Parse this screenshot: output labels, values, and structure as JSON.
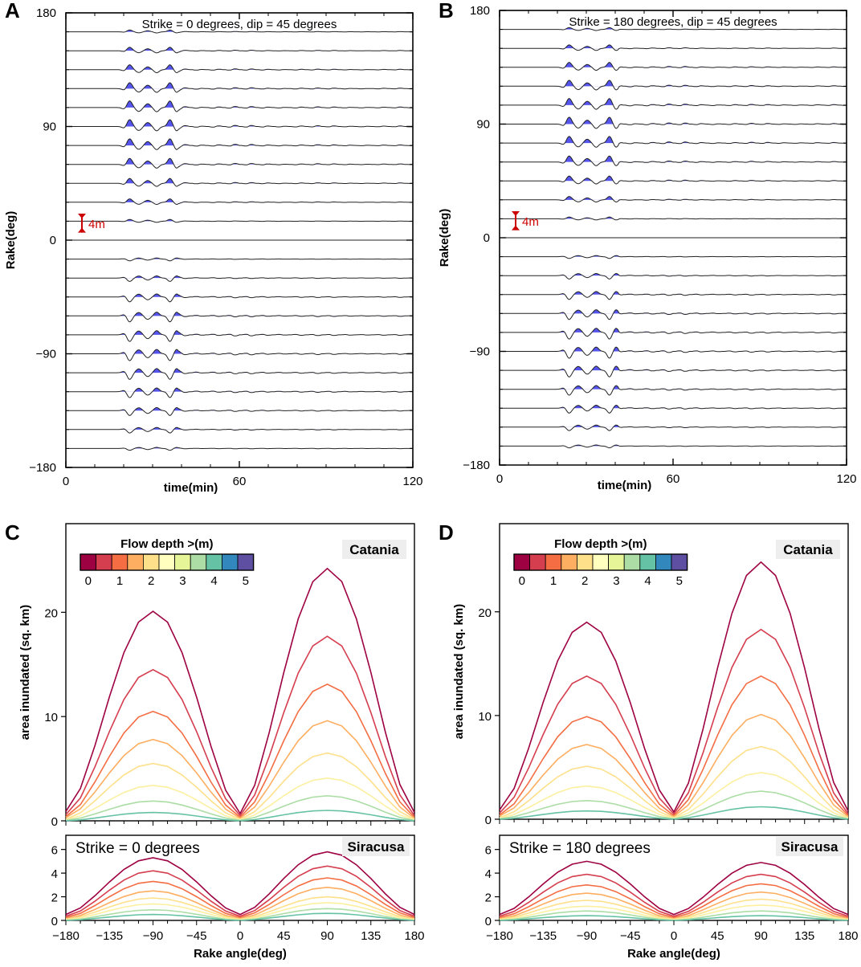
{
  "chart_data": [
    {
      "panel": "A",
      "type": "line",
      "subtype": "waveform-stack",
      "title": "Strike = 0 degrees, dip = 45 degrees",
      "xlabel": "time(min)",
      "ylabel": "Rake(deg)",
      "xlim": [
        0,
        120
      ],
      "ylim": [
        -180,
        180
      ],
      "xticks": [
        "0",
        "60",
        "120"
      ],
      "yticks": [
        "180",
        "90",
        "0",
        "−90",
        "−180"
      ],
      "scale_label": "4m",
      "trace_rakes": [
        165,
        150,
        135,
        120,
        105,
        90,
        75,
        60,
        45,
        30,
        15,
        0,
        -15,
        -30,
        -45,
        -60,
        -75,
        -90,
        -105,
        -120,
        -135,
        -150,
        -165,
        -180
      ],
      "first_arrival_min": 22,
      "second_arrival_min": 36
    },
    {
      "panel": "B",
      "type": "line",
      "subtype": "waveform-stack",
      "title": "Strike = 180 degrees, dip = 45 degrees",
      "xlabel": "time(min)",
      "ylabel": "Rake(deg)",
      "xlim": [
        0,
        120
      ],
      "ylim": [
        -180,
        180
      ],
      "xticks": [
        "0",
        "60",
        "120"
      ],
      "yticks": [
        "180",
        "90",
        "0",
        "−90",
        "−180"
      ],
      "scale_label": "4m",
      "trace_rakes": [
        165,
        150,
        135,
        120,
        105,
        90,
        75,
        60,
        45,
        30,
        15,
        0,
        -15,
        -30,
        -45,
        -60,
        -75,
        -90,
        -105,
        -120,
        -135,
        -150,
        -165,
        -180
      ],
      "first_arrival_min": 24,
      "second_arrival_min": 38
    },
    {
      "panel": "C",
      "type": "line",
      "legend_title": "Flow depth >(m)",
      "legend_ticks": [
        "0",
        "1",
        "2",
        "3",
        "4",
        "5"
      ],
      "legend_colors": [
        "#9e0142",
        "#d53e4f",
        "#f46d43",
        "#fdae61",
        "#fee08b",
        "#ffffbf",
        "#e6f598",
        "#abdda4",
        "#66c2a5",
        "#3288bd",
        "#5e4fa2"
      ],
      "line_colors": [
        "#9e0142",
        "#d53e4f",
        "#f46d43",
        "#fdae61",
        "#fee08b",
        "#fcf0a0",
        "#abdda4",
        "#66c2a5"
      ],
      "upper": {
        "label": "Catania",
        "ylabel": "area inundated (sq. km)",
        "ylim": [
          0,
          28.5
        ],
        "yticks": [
          0,
          10,
          20
        ],
        "x": [
          -180,
          -165,
          -150,
          -135,
          -120,
          -105,
          -90,
          -75,
          -60,
          -45,
          -30,
          -15,
          0,
          15,
          30,
          45,
          60,
          75,
          90,
          105,
          120,
          135,
          150,
          165,
          180
        ],
        "peaks_neg": [
          20.1,
          14.5,
          10.5,
          7.8,
          5.5,
          3.4,
          1.9,
          0.8
        ],
        "peaks_pos": [
          24.2,
          17.7,
          13.1,
          9.6,
          6.5,
          4.1,
          2.4,
          1.0
        ],
        "base_left": [
          0.9,
          0.6,
          0.4,
          0.3,
          0.15,
          0.1,
          0.05,
          0.0
        ],
        "base_mid": [
          0.7,
          0.5,
          0.35,
          0.25,
          0.15,
          0.1,
          0.05,
          0.0
        ],
        "base_right": [
          0.8,
          0.5,
          0.35,
          0.25,
          0.15,
          0.1,
          0.05,
          0.0
        ]
      },
      "lower": {
        "label": "Siracusa",
        "annotation": "Strike = 0 degrees",
        "xlabel": "Rake angle(deg)",
        "ylim": [
          0,
          7.2
        ],
        "yticks": [
          0,
          2,
          4,
          6
        ],
        "xticks": [
          "−180",
          "−135",
          "−90",
          "−45",
          "0",
          "45",
          "90",
          "135",
          "180"
        ],
        "peaks_neg": [
          5.3,
          4.2,
          3.3,
          2.5,
          1.9,
          1.4,
          0.9,
          0.5
        ],
        "peaks_pos": [
          5.8,
          4.6,
          3.6,
          2.8,
          2.0,
          1.5,
          1.0,
          0.6
        ],
        "base_left": [
          0.5,
          0.35,
          0.25,
          0.15,
          0.1,
          0.05,
          0.0,
          0.0
        ],
        "base_mid": [
          0.5,
          0.35,
          0.25,
          0.15,
          0.1,
          0.05,
          0.0,
          0.0
        ],
        "base_right": [
          0.5,
          0.35,
          0.25,
          0.15,
          0.1,
          0.05,
          0.0,
          0.0
        ]
      }
    },
    {
      "panel": "D",
      "type": "line",
      "legend_title": "Flow depth >(m)",
      "legend_ticks": [
        "0",
        "1",
        "2",
        "3",
        "4",
        "5"
      ],
      "legend_colors": [
        "#9e0142",
        "#d53e4f",
        "#f46d43",
        "#fdae61",
        "#fee08b",
        "#ffffbf",
        "#e6f598",
        "#abdda4",
        "#66c2a5",
        "#3288bd",
        "#5e4fa2"
      ],
      "line_colors": [
        "#9e0142",
        "#d53e4f",
        "#f46d43",
        "#fdae61",
        "#fee08b",
        "#fcf0a0",
        "#abdda4",
        "#66c2a5"
      ],
      "upper": {
        "label": "Catania",
        "ylabel": "area inundated (sq. km)",
        "ylim": [
          0,
          28.5
        ],
        "yticks": [
          0,
          10,
          20
        ],
        "x": [
          -180,
          -165,
          -150,
          -135,
          -120,
          -105,
          -90,
          -75,
          -60,
          -45,
          -30,
          -15,
          0,
          15,
          30,
          45,
          60,
          75,
          90,
          105,
          120,
          135,
          150,
          165,
          180
        ],
        "peaks_neg": [
          19.0,
          13.8,
          9.9,
          7.2,
          5.1,
          3.2,
          1.8,
          0.8
        ],
        "peaks_pos": [
          24.8,
          18.3,
          13.8,
          10.1,
          7.0,
          4.5,
          2.7,
          1.2
        ],
        "base_left": [
          0.9,
          0.6,
          0.4,
          0.3,
          0.15,
          0.1,
          0.05,
          0.0
        ],
        "base_mid": [
          0.7,
          0.5,
          0.35,
          0.25,
          0.15,
          0.1,
          0.05,
          0.0
        ],
        "base_right": [
          0.8,
          0.5,
          0.35,
          0.25,
          0.15,
          0.1,
          0.05,
          0.0
        ]
      },
      "lower": {
        "label": "Siracusa",
        "annotation": "Strike = 180 degrees",
        "xlabel": "Rake angle(deg)",
        "ylim": [
          0,
          7.2
        ],
        "yticks": [
          0,
          2,
          4,
          6
        ],
        "xticks": [
          "−180",
          "−135",
          "−90",
          "−45",
          "0",
          "45",
          "90",
          "135",
          "180"
        ],
        "peaks_neg": [
          5.0,
          3.9,
          3.0,
          2.3,
          1.7,
          1.2,
          0.8,
          0.4
        ],
        "peaks_pos": [
          4.9,
          3.9,
          3.1,
          2.4,
          1.8,
          1.3,
          0.8,
          0.4
        ],
        "base_left": [
          0.5,
          0.35,
          0.25,
          0.15,
          0.1,
          0.05,
          0.0,
          0.0
        ],
        "base_mid": [
          0.5,
          0.35,
          0.25,
          0.15,
          0.1,
          0.05,
          0.0,
          0.0
        ],
        "base_right": [
          0.5,
          0.35,
          0.25,
          0.15,
          0.1,
          0.05,
          0.0,
          0.0
        ]
      }
    }
  ]
}
